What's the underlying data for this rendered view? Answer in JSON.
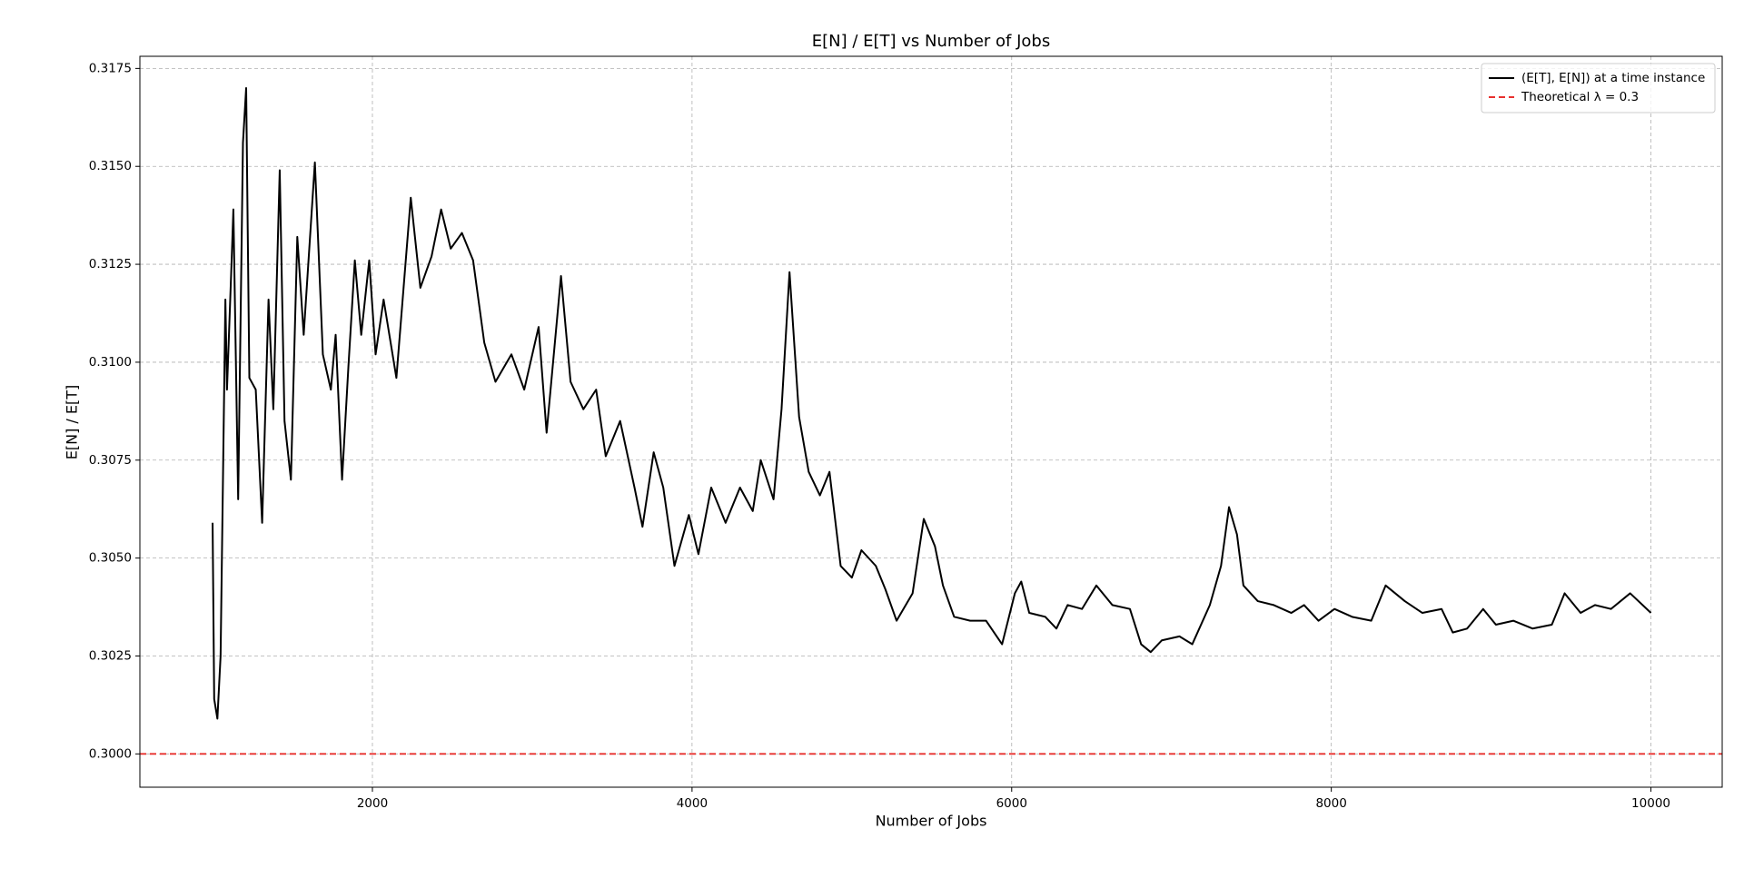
{
  "chart_data": {
    "type": "line",
    "title": "E[N] / E[T] vs Number of Jobs",
    "x_label": "Number of Jobs",
    "y_label": "E[N] / E[T]",
    "xlim": [
      545,
      10446
    ],
    "ylim": [
      0.29915,
      0.31781
    ],
    "xticks": [
      2000,
      4000,
      6000,
      8000,
      10000
    ],
    "yticks": [
      {
        "value": 0.3,
        "label": "0.3000"
      },
      0.3025,
      {
        "value": 0.305,
        "label": "0.3050"
      },
      0.3075,
      {
        "value": 0.31,
        "label": "0.3100"
      },
      0.3125,
      {
        "value": 0.315,
        "label": "0.3150"
      },
      0.3175
    ],
    "grid": true,
    "legend": "upper right",
    "series": [
      {
        "name": "(E[T], E[N]) at a time instance",
        "color": "#000000",
        "x": [
          1000,
          1010,
          1030,
          1050,
          1080,
          1090,
          1120,
          1130,
          1160,
          1190,
          1210,
          1230,
          1270,
          1310,
          1350,
          1380,
          1420,
          1450,
          1490,
          1530,
          1570,
          1640,
          1690,
          1740,
          1770,
          1810,
          1850,
          1890,
          1930,
          1980,
          2020,
          2070,
          2150,
          2240,
          2300,
          2370,
          2430,
          2490,
          2560,
          2630,
          2700,
          2770,
          2870,
          2950,
          3040,
          3090,
          3180,
          3240,
          3320,
          3400,
          3460,
          3550,
          3640,
          3690,
          3760,
          3820,
          3890,
          3980,
          4040,
          4120,
          4210,
          4300,
          4380,
          4430,
          4510,
          4560,
          4610,
          4670,
          4730,
          4800,
          4860,
          4930,
          5000,
          5060,
          5150,
          5210,
          5280,
          5380,
          5450,
          5520,
          5570,
          5640,
          5740,
          5840,
          5940,
          6020,
          6060,
          6110,
          6210,
          6280,
          6350,
          6440,
          6530,
          6630,
          6740,
          6810,
          6870,
          6940,
          7050,
          7130,
          7240,
          7310,
          7360,
          7410,
          7450,
          7540,
          7640,
          7750,
          7830,
          7920,
          8020,
          8130,
          8250,
          8340,
          8460,
          8570,
          8690,
          8760,
          8850,
          8950,
          9030,
          9140,
          9260,
          9380,
          9460,
          9560,
          9650,
          9750,
          9870,
          10000
        ],
        "values": [
          0.3059,
          0.3014,
          0.3009,
          0.3025,
          0.3116,
          0.3093,
          0.3127,
          0.3139,
          0.3065,
          0.3156,
          0.317,
          0.3096,
          0.3093,
          0.3059,
          0.3116,
          0.3088,
          0.3149,
          0.3085,
          0.307,
          0.3132,
          0.3107,
          0.3151,
          0.3102,
          0.3093,
          0.3107,
          0.307,
          0.3099,
          0.3126,
          0.3107,
          0.3126,
          0.3102,
          0.3116,
          0.3096,
          0.3142,
          0.3119,
          0.3127,
          0.3139,
          0.3129,
          0.3133,
          0.3126,
          0.3105,
          0.3095,
          0.3102,
          0.3093,
          0.3109,
          0.3082,
          0.3122,
          0.3095,
          0.3088,
          0.3093,
          0.3076,
          0.3085,
          0.3068,
          0.3058,
          0.3077,
          0.3068,
          0.3048,
          0.3061,
          0.3051,
          0.3068,
          0.3059,
          0.3068,
          0.3062,
          0.3075,
          0.3065,
          0.3088,
          0.3123,
          0.3086,
          0.3072,
          0.3066,
          0.3072,
          0.3048,
          0.3045,
          0.3052,
          0.3048,
          0.3042,
          0.3034,
          0.3041,
          0.306,
          0.3053,
          0.3043,
          0.3035,
          0.3034,
          0.3034,
          0.3028,
          0.3041,
          0.3044,
          0.3036,
          0.3035,
          0.3032,
          0.3038,
          0.3037,
          0.3043,
          0.3038,
          0.3037,
          0.3028,
          0.3026,
          0.3029,
          0.303,
          0.3028,
          0.3038,
          0.3048,
          0.3063,
          0.3056,
          0.3043,
          0.3039,
          0.3038,
          0.3036,
          0.3038,
          0.3034,
          0.3037,
          0.3035,
          0.3034,
          0.3043,
          0.3039,
          0.3036,
          0.3037,
          0.3031,
          0.3032,
          0.3037,
          0.3033,
          0.3034,
          0.3032,
          0.3033,
          0.3041,
          0.3036,
          0.3038,
          0.3037,
          0.3041,
          0.3036
        ]
      }
    ],
    "reference_line": {
      "name": "Theoretical λ = 0.3",
      "color": "#e8312f",
      "value": 0.3,
      "style": "dashed"
    }
  }
}
